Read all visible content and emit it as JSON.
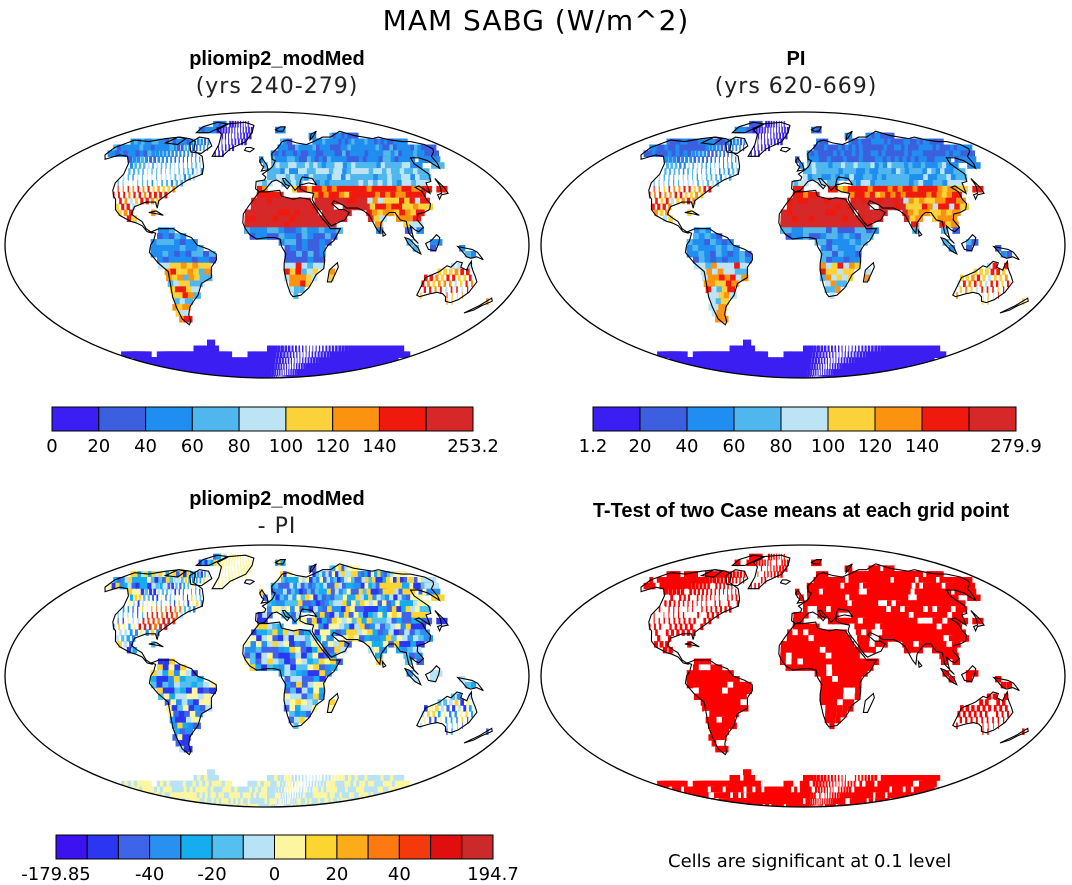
{
  "figure": {
    "title": "MAM SABG (W/m^2)"
  },
  "colors": {
    "base_palette": [
      "#3a1ef2",
      "#3c5fe0",
      "#1f8ef0",
      "#4fb7ee",
      "#bde4f4",
      "#fcd23a",
      "#fc9310",
      "#f0190e",
      "#d62828"
    ],
    "diff_palette": [
      "#3c12f0",
      "#2a36f0",
      "#3e64ea",
      "#2790f0",
      "#16acf0",
      "#54c0f0",
      "#b8e2f6",
      "#fdf6a0",
      "#fcd530",
      "#fcac18",
      "#fc7a10",
      "#f43a0c",
      "#e00e0e",
      "#cc2a2a"
    ],
    "significance": "#ff0000",
    "land_outline": "#000000"
  },
  "panels": {
    "top_left": {
      "title": "pliomip2_modMed",
      "subtitle": "(yrs 240-279)",
      "colorbar_labels": [
        "0",
        "20",
        "40",
        "60",
        "80",
        "100",
        "120",
        "140",
        "253.2"
      ]
    },
    "top_right": {
      "title": "PI",
      "subtitle": "(yrs 620-669)",
      "colorbar_labels": [
        "1.2",
        "20",
        "40",
        "60",
        "80",
        "100",
        "120",
        "140",
        "279.9"
      ]
    },
    "bottom_left": {
      "title": "pliomip2_modMed",
      "subtitle": "- PI",
      "colorbar_labels": [
        "-179.85",
        "-40",
        "-20",
        "0",
        "20",
        "40",
        "194.7"
      ]
    },
    "bottom_right": {
      "title": "T-Test of two Case means at each grid point",
      "note": "Cells are significant at 0.1 level"
    }
  }
}
